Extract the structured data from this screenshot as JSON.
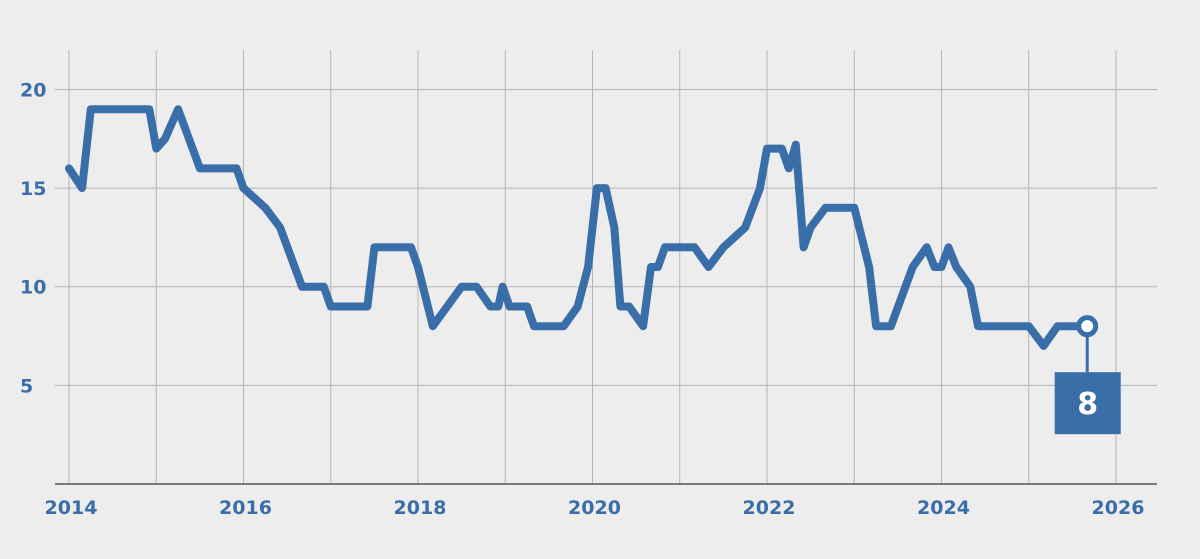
{
  "chart_data": {
    "type": "line",
    "title": "",
    "xlabel": "",
    "ylabel": "",
    "xlim": [
      2014,
      2026
    ],
    "ylim": [
      0,
      22
    ],
    "x_ticks": [
      2014,
      2016,
      2018,
      2020,
      2022,
      2024,
      2026
    ],
    "y_ticks": [
      5,
      10,
      15,
      20
    ],
    "x_tick_labels": [
      "2014",
      "2016",
      "2018",
      "2020",
      "2022",
      "2024",
      "2026"
    ],
    "y_tick_labels": [
      "5",
      "10",
      "15",
      "20"
    ],
    "grid": true,
    "line_color": "#3a6ea8",
    "series": [
      {
        "x": [
          2014.0,
          2014.15,
          2014.25,
          2014.5,
          2014.75,
          2014.92,
          2015.0,
          2015.1,
          2015.25,
          2015.5,
          2015.75,
          2015.92,
          2016.0,
          2016.25,
          2016.42,
          2016.67,
          2016.92,
          2017.0,
          2017.17,
          2017.42,
          2017.5,
          2017.75,
          2017.92,
          2018.0,
          2018.17,
          2018.5,
          2018.67,
          2018.83,
          2018.92,
          2018.97,
          2019.05,
          2019.25,
          2019.33,
          2019.5,
          2019.67,
          2019.83,
          2019.95,
          2020.0,
          2020.05,
          2020.15,
          2020.25,
          2020.32,
          2020.42,
          2020.58,
          2020.67,
          2020.75,
          2020.83,
          2020.92,
          2021.0,
          2021.17,
          2021.33,
          2021.5,
          2021.75,
          2021.92,
          2022.0,
          2022.17,
          2022.25,
          2022.33,
          2022.42,
          2022.5,
          2022.67,
          2022.75,
          2022.92,
          2023.0,
          2023.17,
          2023.25,
          2023.42,
          2023.67,
          2023.83,
          2023.92,
          2024.0,
          2024.08,
          2024.17,
          2024.33,
          2024.42,
          2024.58,
          2024.92,
          2025.0,
          2025.17,
          2025.33,
          2025.5,
          2025.67
        ],
        "y": [
          16,
          15,
          19,
          19,
          19,
          19,
          17,
          17.5,
          19,
          16,
          16,
          16,
          15,
          14,
          13,
          10,
          10,
          9,
          9,
          9,
          12,
          12,
          12,
          11,
          8,
          10,
          10,
          9,
          9,
          10,
          9,
          9,
          8,
          8,
          8,
          9,
          11,
          13,
          15,
          15,
          13,
          9,
          9,
          8,
          11,
          11,
          12,
          12,
          12,
          12,
          11,
          12,
          13,
          15,
          17,
          17,
          16,
          17.2,
          12,
          13,
          14,
          14,
          14,
          14,
          11,
          8,
          8,
          11,
          12,
          11,
          11,
          12,
          11,
          10,
          8,
          8,
          8,
          8,
          7,
          8,
          8,
          8
        ]
      }
    ],
    "end_label": "8"
  }
}
